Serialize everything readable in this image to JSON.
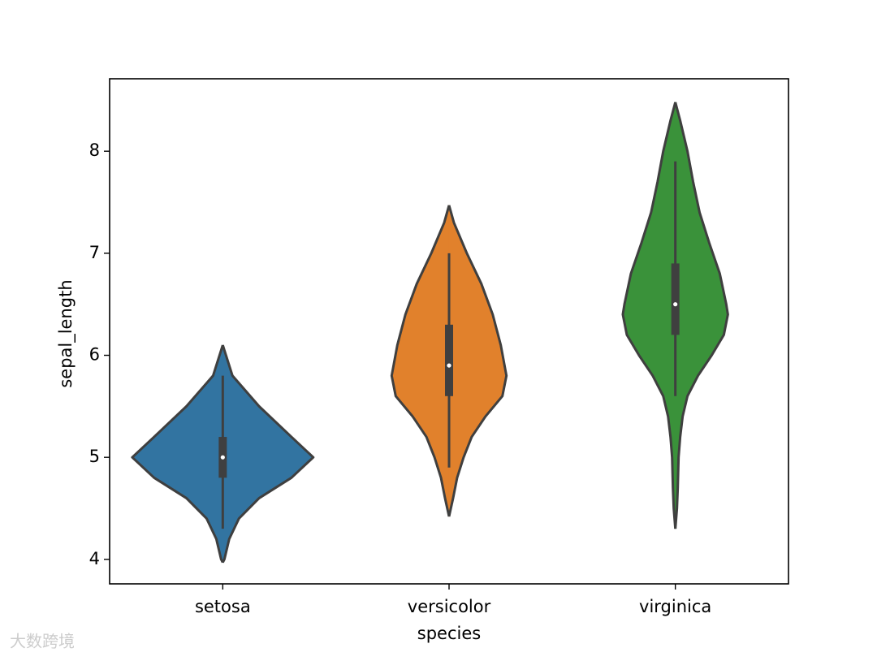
{
  "chart_data": {
    "type": "violin",
    "x_label": "species",
    "y_label": "sepal_length",
    "categories": [
      "setosa",
      "versicolor",
      "virginica"
    ],
    "ylim": [
      3.76,
      8.71
    ],
    "yticks": [
      4,
      5,
      6,
      7,
      8
    ],
    "outline_color": "#3f3f3f",
    "violins": [
      {
        "color": "#3274a1",
        "density_y": [
          3.97,
          4.0,
          4.2,
          4.4,
          4.6,
          4.8,
          5.0,
          5.2,
          5.5,
          5.8,
          6.1
        ],
        "density": [
          0,
          2,
          8,
          20,
          45,
          85,
          112,
          85,
          45,
          12,
          0
        ],
        "whisker_low": 4.3,
        "q1": 4.8,
        "median": 5.0,
        "q3": 5.2,
        "whisker_high": 5.8
      },
      {
        "color": "#e1812c",
        "density_y": [
          4.42,
          4.6,
          4.8,
          5.0,
          5.2,
          5.4,
          5.6,
          5.8,
          6.1,
          6.4,
          6.7,
          7.0,
          7.3,
          7.47
        ],
        "density": [
          0,
          5,
          10,
          18,
          28,
          45,
          66,
          71,
          64,
          54,
          40,
          22,
          6,
          0
        ],
        "whisker_low": 4.9,
        "q1": 5.6,
        "median": 5.9,
        "q3": 6.3,
        "whisker_high": 7.0
      },
      {
        "color": "#3a923a",
        "density_y": [
          4.3,
          4.5,
          4.7,
          5.0,
          5.2,
          5.4,
          5.6,
          5.8,
          6.0,
          6.2,
          6.4,
          6.5,
          6.8,
          7.1,
          7.4,
          7.7,
          8.0,
          8.3,
          8.48
        ],
        "density": [
          0,
          2,
          3,
          4,
          6,
          9,
          15,
          28,
          45,
          60,
          65,
          63,
          55,
          42,
          30,
          22,
          15,
          6,
          0
        ],
        "whisker_low": 5.6,
        "q1": 6.2,
        "median": 6.5,
        "q3": 6.9,
        "whisker_high": 7.9
      }
    ],
    "watermark": "大数跨境"
  }
}
